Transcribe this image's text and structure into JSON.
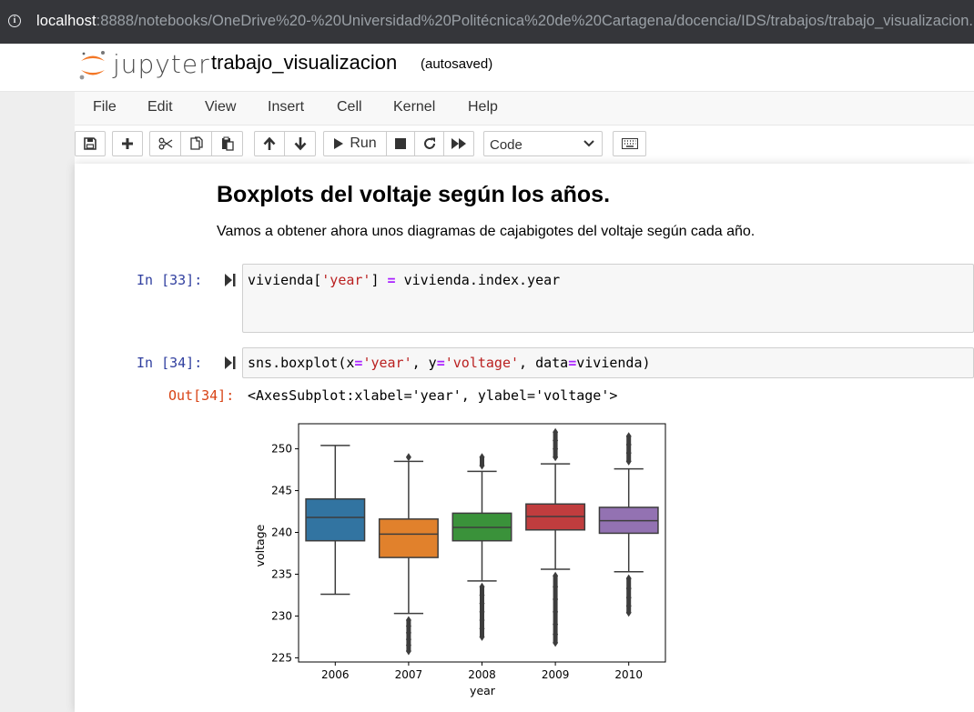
{
  "browser": {
    "url_host": "localhost",
    "url_path": ":8888/notebooks/OneDrive%20-%20Universidad%20Politécnica%20de%20Cartagena/docencia/IDS/trabajos/trabajo_visualizacion.ipynb"
  },
  "header": {
    "logo_text": "jupyter",
    "notebook_name": "trabajo_visualizacion",
    "save_status": "(autosaved)"
  },
  "menu": [
    "File",
    "Edit",
    "View",
    "Insert",
    "Cell",
    "Kernel",
    "Help"
  ],
  "toolbar": {
    "run_label": "Run",
    "cell_type": "Code"
  },
  "markdown": {
    "title": "Boxplots del voltaje según los años.",
    "text": "Vamos a obtener ahora unos diagramas de cajabigotes del voltaje según cada año."
  },
  "cells": [
    {
      "prompt": "In [33]:",
      "code": {
        "t1": "vivienda[",
        "s1": "'year'",
        "t2": "] ",
        "op": "=",
        "t3": " vivienda.index.year"
      }
    },
    {
      "prompt": "In [34]:",
      "code": {
        "t1": "sns.boxplot(x",
        "e1": "=",
        "s1": "'year'",
        "t2": ", y",
        "e2": "=",
        "s2": "'voltage'",
        "t3": ", data",
        "e3": "=",
        "t4": "vivienda)"
      },
      "out_prompt": "Out[34]:",
      "output": "<AxesSubplot:xlabel='year', ylabel='voltage'>"
    }
  ],
  "chart_data": {
    "type": "boxplot",
    "xlabel": "year",
    "ylabel": "voltage",
    "ylim": [
      225,
      252
    ],
    "yticks": [
      225,
      230,
      235,
      240,
      245,
      250
    ],
    "categories": [
      "2006",
      "2007",
      "2008",
      "2009",
      "2010"
    ],
    "colors": [
      "#3274a1",
      "#e1812c",
      "#3a923a",
      "#c03d3e",
      "#9372b2"
    ],
    "boxes": [
      {
        "q1": 239.0,
        "median": 241.8,
        "q3": 244.0,
        "whisker_low": 232.6,
        "whisker_high": 250.4,
        "fliers_low": [],
        "fliers_high": []
      },
      {
        "q1": 237.0,
        "median": 239.8,
        "q3": 241.6,
        "whisker_low": 230.3,
        "whisker_high": 248.5,
        "fliers_low": [
          229.5,
          228.8,
          228.0,
          227.2,
          226.5,
          225.8
        ],
        "fliers_high": [
          249.0
        ]
      },
      {
        "q1": 239.0,
        "median": 240.6,
        "q3": 242.3,
        "whisker_low": 234.2,
        "whisker_high": 247.3,
        "fliers_low": [
          233.5,
          232.5,
          231.5,
          230.5,
          229.5,
          228.5,
          227.5
        ],
        "fliers_high": [
          248.0,
          249.0
        ]
      },
      {
        "q1": 240.3,
        "median": 241.9,
        "q3": 243.4,
        "whisker_low": 235.6,
        "whisker_high": 248.2,
        "fliers_low": [
          234.8,
          233.5,
          232.0,
          230.5,
          229.0,
          227.8,
          226.8
        ],
        "fliers_high": [
          249.0,
          250.0,
          251.0,
          252.0
        ]
      },
      {
        "q1": 239.9,
        "median": 241.4,
        "q3": 243.0,
        "whisker_low": 235.3,
        "whisker_high": 247.6,
        "fliers_low": [
          234.5,
          233.3,
          232.2,
          231.2,
          230.4
        ],
        "fliers_high": [
          248.5,
          249.5,
          250.5,
          251.5
        ]
      }
    ]
  }
}
